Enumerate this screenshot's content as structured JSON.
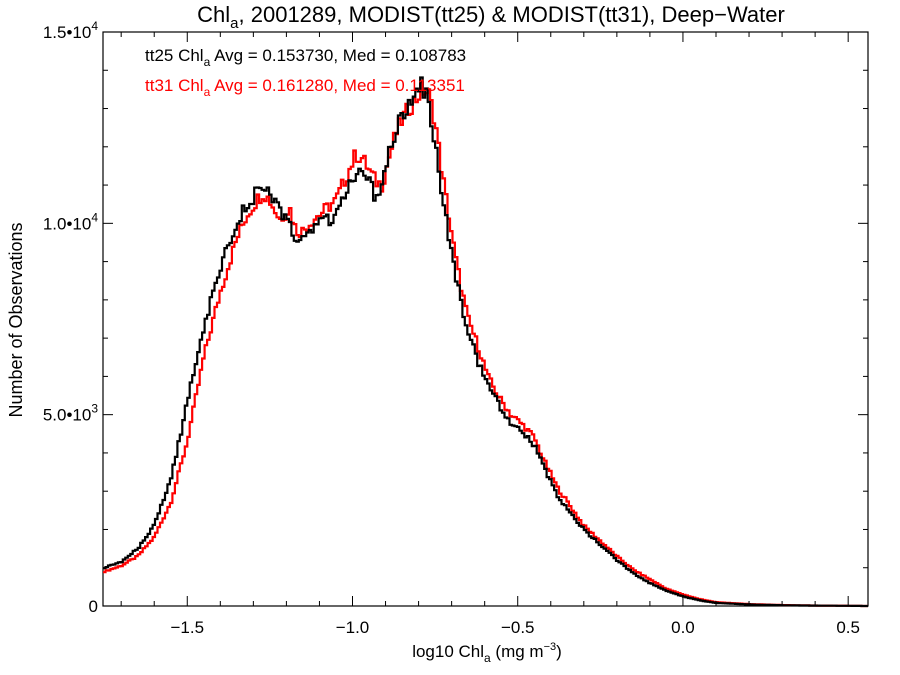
{
  "chart_data": {
    "type": "histogram-step",
    "title": {
      "prefix": "Chl",
      "sub": "a",
      "suffix": ", 2001289, MODIST(tt25) & MODIST(tt31), Deep−Water"
    },
    "xlabel": {
      "prefix": "log10 Chl",
      "sub": "a",
      "suffix": " (mg m",
      "sup": "−3",
      "close": ")"
    },
    "ylabel": "Number of Observations",
    "xlim": [
      -1.755,
      0.56
    ],
    "ylim": [
      0,
      15000
    ],
    "x_ticks": [
      {
        "value": -1.5,
        "label": "−1.5"
      },
      {
        "value": -1.0,
        "label": "−1.0"
      },
      {
        "value": -0.5,
        "label": "−0.5"
      },
      {
        "value": 0.0,
        "label": "0.0"
      },
      {
        "value": 0.5,
        "label": "0.5"
      }
    ],
    "y_ticks": [
      {
        "value": 0,
        "base": "0",
        "exp": ""
      },
      {
        "value": 5000,
        "base": "5.0•10",
        "exp": "3"
      },
      {
        "value": 10000,
        "base": "1.0•10",
        "exp": "4"
      },
      {
        "value": 15000,
        "base": "1.5•10",
        "exp": "4"
      }
    ],
    "annotations": [
      {
        "series": "tt25",
        "color": "#000000",
        "prefix": "tt25 Chl",
        "sub": "a",
        "suffix": " Avg = 0.153730, Med = 0.108783"
      },
      {
        "series": "tt31",
        "color": "#ff0000",
        "prefix": "tt31 Chl",
        "sub": "a",
        "suffix": " Avg = 0.161280, Med = 0.113351"
      }
    ],
    "grid": false,
    "series": [
      {
        "name": "tt25",
        "color": "#000000",
        "x": [
          -1.75,
          -1.7,
          -1.65,
          -1.6,
          -1.55,
          -1.5,
          -1.45,
          -1.4,
          -1.35,
          -1.32,
          -1.29,
          -1.27,
          -1.25,
          -1.22,
          -1.19,
          -1.17,
          -1.15,
          -1.12,
          -1.09,
          -1.05,
          -1.02,
          -0.99,
          -0.97,
          -0.95,
          -0.93,
          -0.91,
          -0.89,
          -0.87,
          -0.85,
          -0.83,
          -0.81,
          -0.79,
          -0.77,
          -0.75,
          -0.73,
          -0.71,
          -0.69,
          -0.67,
          -0.65,
          -0.62,
          -0.59,
          -0.56,
          -0.52,
          -0.48,
          -0.45,
          -0.42,
          -0.38,
          -0.34,
          -0.3,
          -0.25,
          -0.2,
          -0.15,
          -0.1,
          -0.05,
          0.0,
          0.05,
          0.1,
          0.2,
          0.3,
          0.4,
          0.5,
          0.55
        ],
        "y": [
          1000,
          1150,
          1500,
          2100,
          3300,
          5300,
          7300,
          8800,
          10100,
          10400,
          10800,
          10900,
          10700,
          10300,
          9900,
          9500,
          9600,
          9900,
          10000,
          10200,
          10800,
          11300,
          11200,
          11100,
          10700,
          11000,
          11800,
          12400,
          12800,
          13100,
          13500,
          13600,
          13200,
          12000,
          10800,
          9800,
          8700,
          7900,
          7200,
          6400,
          5800,
          5300,
          4800,
          4500,
          4200,
          3600,
          2900,
          2400,
          2000,
          1600,
          1200,
          850,
          600,
          400,
          250,
          150,
          80,
          40,
          20,
          10,
          5,
          0
        ]
      },
      {
        "name": "tt31",
        "color": "#ff0000",
        "x": [
          -1.75,
          -1.7,
          -1.65,
          -1.6,
          -1.55,
          -1.5,
          -1.45,
          -1.4,
          -1.35,
          -1.32,
          -1.29,
          -1.27,
          -1.25,
          -1.22,
          -1.19,
          -1.17,
          -1.15,
          -1.12,
          -1.09,
          -1.05,
          -1.02,
          -0.99,
          -0.97,
          -0.95,
          -0.93,
          -0.91,
          -0.89,
          -0.87,
          -0.85,
          -0.83,
          -0.81,
          -0.79,
          -0.77,
          -0.75,
          -0.73,
          -0.71,
          -0.69,
          -0.67,
          -0.65,
          -0.62,
          -0.59,
          -0.56,
          -0.52,
          -0.48,
          -0.45,
          -0.42,
          -0.38,
          -0.34,
          -0.3,
          -0.25,
          -0.2,
          -0.15,
          -0.1,
          -0.05,
          0.0,
          0.05,
          0.1,
          0.2,
          0.3,
          0.4,
          0.5,
          0.55
        ],
        "y": [
          900,
          1050,
          1300,
          1800,
          2700,
          4300,
          6500,
          8200,
          9600,
          10200,
          10600,
          10800,
          10600,
          10100,
          10400,
          9800,
          9800,
          10100,
          10300,
          10600,
          11200,
          11800,
          11700,
          11400,
          11100,
          11000,
          11700,
          12300,
          12700,
          13000,
          13200,
          13500,
          13400,
          12700,
          11400,
          10300,
          9200,
          8300,
          7500,
          6800,
          6000,
          5500,
          5000,
          4700,
          4400,
          3800,
          3100,
          2600,
          2100,
          1700,
          1300,
          950,
          700,
          450,
          300,
          180,
          100,
          50,
          25,
          12,
          6,
          0
        ]
      }
    ]
  }
}
